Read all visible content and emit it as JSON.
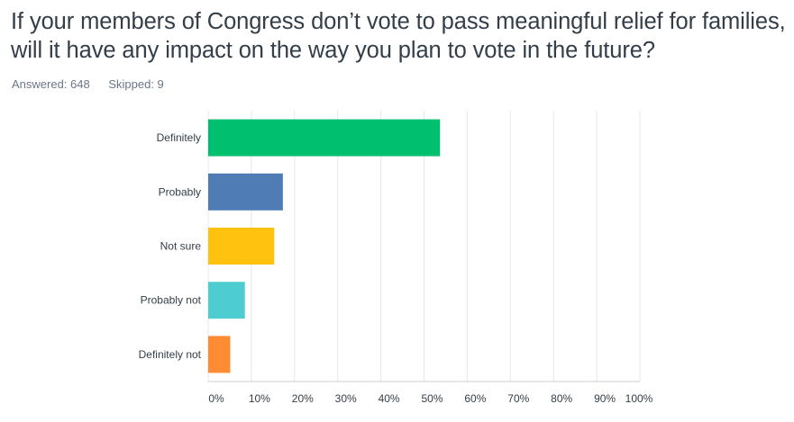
{
  "title": "If your members of Congress don’t vote to pass meaningful relief for families, will it have any impact on the way you plan to vote in the future?",
  "answered": "Answered: 648",
  "skipped": "Skipped: 9",
  "chart_data": {
    "type": "bar",
    "orientation": "horizontal",
    "categories": [
      "Definitely",
      "Probably",
      "Not sure",
      "Probably not",
      "Definitely not"
    ],
    "values": [
      53.7,
      17.3,
      15.3,
      8.5,
      5.1
    ],
    "colors": [
      "#00bf6f",
      "#507cb6",
      "#ffc20e",
      "#4ecdd1",
      "#ff8b33"
    ],
    "xlim": [
      0,
      100
    ],
    "xticks": [
      0,
      10,
      20,
      30,
      40,
      50,
      60,
      70,
      80,
      90,
      100
    ],
    "xtick_labels": [
      "0%",
      "10%",
      "20%",
      "30%",
      "40%",
      "50%",
      "60%",
      "70%",
      "80%",
      "90%",
      "100%"
    ],
    "grid": true,
    "value_unit": "percent"
  }
}
